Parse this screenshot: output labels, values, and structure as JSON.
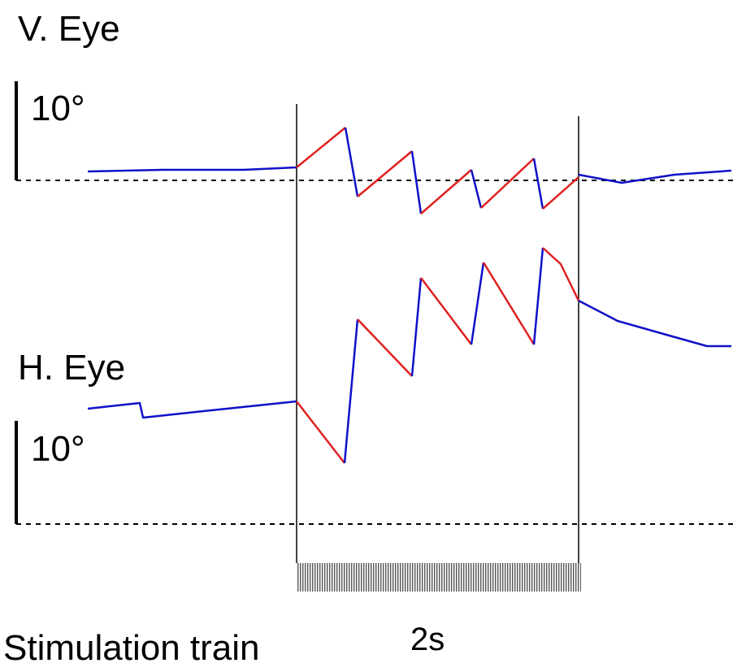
{
  "labels": {
    "vertical_trace": "V. Eye",
    "vertical_scale": "10°",
    "horizontal_trace": "H. Eye",
    "horizontal_scale": "10°",
    "stimulation": "Stimulation train",
    "duration": "2s"
  }
}
